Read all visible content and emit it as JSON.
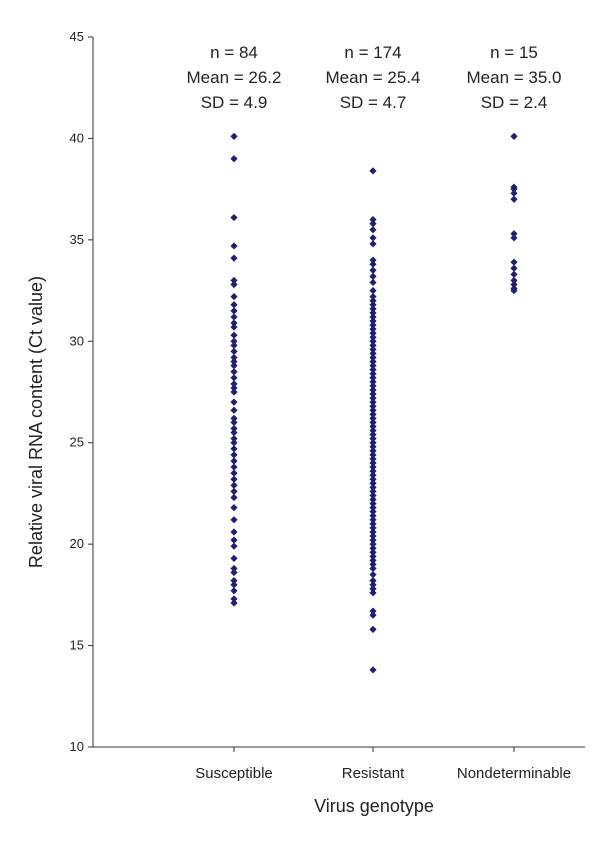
{
  "chart_data": {
    "type": "scatter",
    "title": "",
    "xlabel": "Virus genotype",
    "ylabel": "Relative viral RNA content  (Ct value)",
    "ylim": [
      10,
      45
    ],
    "yticks": [
      10,
      15,
      20,
      25,
      30,
      35,
      40,
      45
    ],
    "grid": false,
    "legend": "none",
    "marker_color": "#1f1f6e",
    "categories": [
      "Susceptible",
      "Resistant",
      "Nondeterminable"
    ],
    "series": [
      {
        "category": "Susceptible",
        "stats": [
          "n = 84",
          "Mean = 26.2",
          "SD = 4.9"
        ],
        "values": [
          40.1,
          39.0,
          36.1,
          34.7,
          34.1,
          33.0,
          32.8,
          32.2,
          31.8,
          31.5,
          31.2,
          30.9,
          30.7,
          30.3,
          30.0,
          29.8,
          29.5,
          29.2,
          29.0,
          28.8,
          28.5,
          28.2,
          27.9,
          27.7,
          27.5,
          27.0,
          26.6,
          26.2,
          26.0,
          25.7,
          25.5,
          25.2,
          25.0,
          24.7,
          24.4,
          24.1,
          23.8,
          23.5,
          23.2,
          22.9,
          22.6,
          22.3,
          21.8,
          21.2,
          20.6,
          20.2,
          19.9,
          19.3,
          18.8,
          18.6,
          18.2,
          18.0,
          17.7,
          17.3,
          17.1
        ],
        "note_visible_points": "overlapping points not all distinguishable"
      },
      {
        "category": "Resistant",
        "values": [
          38.4,
          36.0,
          35.8,
          35.5,
          35.1,
          34.8,
          34.0,
          33.8,
          33.5,
          33.2,
          32.9,
          32.5,
          32.2,
          32.0,
          31.8,
          31.6,
          31.4,
          31.2,
          31.0,
          30.8,
          30.6,
          30.4,
          30.2,
          30.0,
          29.8,
          29.6,
          29.4,
          29.2,
          29.0,
          28.8,
          28.6,
          28.4,
          28.2,
          28.0,
          27.8,
          27.6,
          27.4,
          27.2,
          27.0,
          26.8,
          26.6,
          26.4,
          26.2,
          26.0,
          25.8,
          25.6,
          25.4,
          25.2,
          25.0,
          24.8,
          24.6,
          24.4,
          24.2,
          24.0,
          23.8,
          23.6,
          23.4,
          23.2,
          23.0,
          22.8,
          22.6,
          22.4,
          22.2,
          22.0,
          21.8,
          21.6,
          21.4,
          21.2,
          21.0,
          20.8,
          20.6,
          20.4,
          20.2,
          20.0,
          19.8,
          19.6,
          19.4,
          19.2,
          19.0,
          18.8,
          18.5,
          18.2,
          18.0,
          17.8,
          17.6,
          16.7,
          16.5,
          15.8,
          13.8
        ],
        "stats": [
          "n = 174",
          "Mean = 25.4",
          "SD = 4.7"
        ]
      },
      {
        "category": "Nondeterminable",
        "stats": [
          "n = 15",
          "Mean = 35.0",
          "SD = 2.4"
        ],
        "values": [
          40.1,
          37.6,
          37.5,
          37.3,
          37.0,
          35.3,
          35.1,
          33.9,
          33.6,
          33.3,
          33.0,
          32.8,
          32.6,
          32.5
        ]
      }
    ]
  }
}
